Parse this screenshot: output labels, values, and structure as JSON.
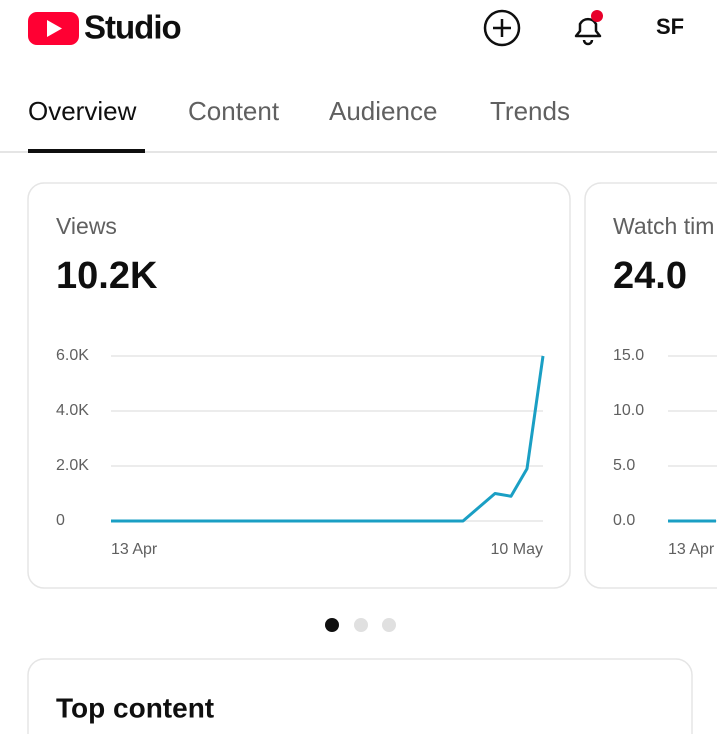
{
  "header": {
    "logo_text": "Studio",
    "account": "SF"
  },
  "tabs": [
    "Overview",
    "Content",
    "Audience",
    "Trends"
  ],
  "cards": [
    {
      "title": "Views",
      "value": "10.2K",
      "chart_data": {
        "type": "line",
        "color": "#1a9fc4",
        "grid": true,
        "categories": [
          "13 Apr",
          null,
          null,
          null,
          null,
          null,
          null,
          null,
          null,
          null,
          null,
          null,
          null,
          null,
          null,
          null,
          null,
          null,
          null,
          null,
          null,
          null,
          null,
          null,
          null,
          null,
          null,
          "10 May"
        ],
        "values": [
          0,
          0,
          0,
          0,
          0,
          0,
          0,
          0,
          0,
          0,
          0,
          0,
          0,
          0,
          0,
          0,
          0,
          0,
          0,
          0,
          0,
          0,
          0,
          500,
          1000,
          900,
          1900,
          6000
        ],
        "ylim": [
          0,
          6000
        ],
        "yticks": [
          0,
          {
            "value": 2000,
            "label": "2.0K"
          },
          {
            "value": 4000,
            "label": "4.0K"
          },
          {
            "value": 6000,
            "label": "6.0K"
          }
        ]
      }
    },
    {
      "title": "Watch tim",
      "value": "24.0",
      "chart_data": {
        "type": "line",
        "color": "#1a9fc4",
        "grid": true,
        "categories": [
          "13 Apr",
          null,
          null,
          null
        ],
        "values": [
          0,
          0,
          0,
          0
        ],
        "ylim": [
          0,
          15
        ],
        "yticks": [
          {
            "value": 0,
            "label": "0.0"
          },
          {
            "value": 5,
            "label": "5.0"
          },
          {
            "value": 10,
            "label": "10.0"
          },
          {
            "value": 15,
            "label": "15.0"
          }
        ]
      }
    }
  ],
  "top_content": {
    "title": "Top content"
  }
}
